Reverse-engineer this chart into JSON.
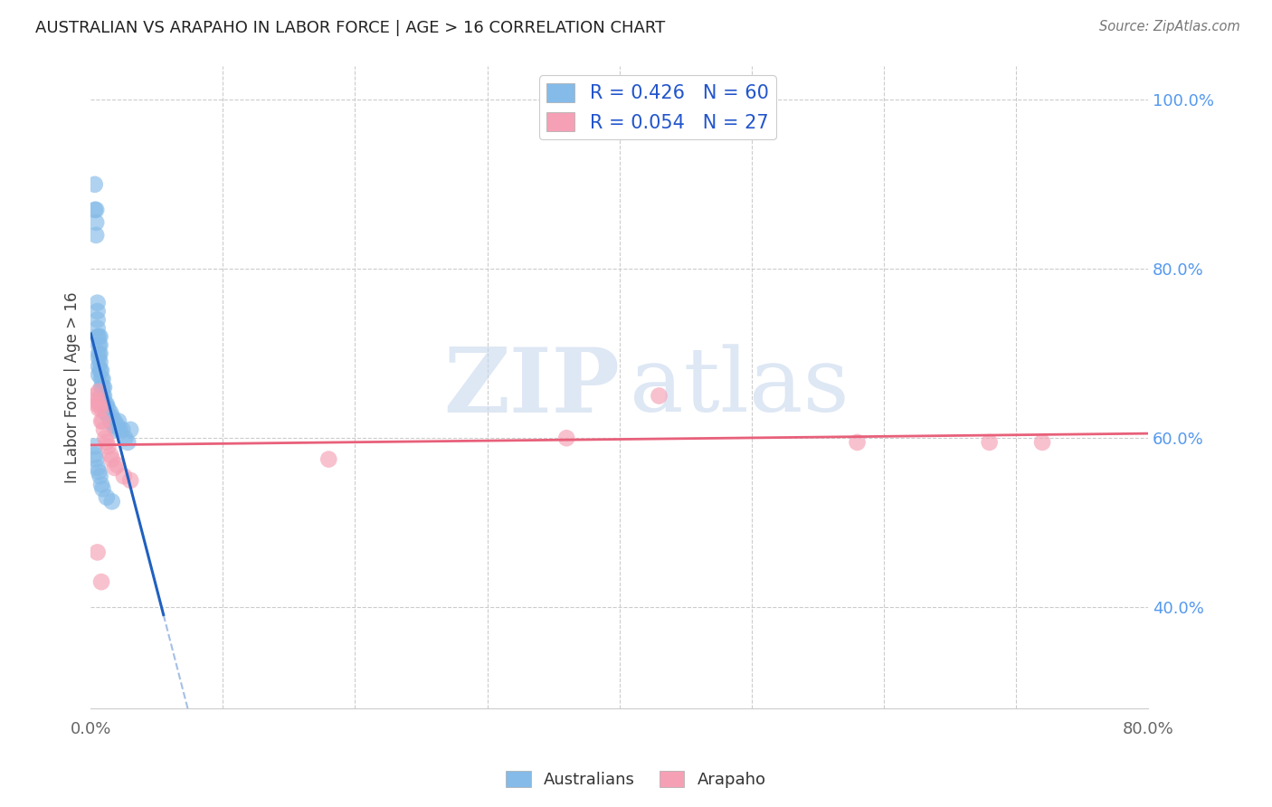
{
  "title": "AUSTRALIAN VS ARAPAHO IN LABOR FORCE | AGE > 16 CORRELATION CHART",
  "source": "Source: ZipAtlas.com",
  "ylabel": "In Labor Force | Age > 16",
  "xlim": [
    0.0,
    0.8
  ],
  "ylim": [
    0.28,
    1.04
  ],
  "xticks": [
    0.0,
    0.1,
    0.2,
    0.3,
    0.4,
    0.5,
    0.6,
    0.7,
    0.8
  ],
  "xticklabels": [
    "0.0%",
    "",
    "",
    "",
    "",
    "",
    "",
    "",
    "80.0%"
  ],
  "yticks_right": [
    0.4,
    0.6,
    0.8,
    1.0
  ],
  "yticklabels_right": [
    "40.0%",
    "60.0%",
    "80.0%",
    "100.0%"
  ],
  "blue_R": 0.426,
  "blue_N": 60,
  "pink_R": 0.054,
  "pink_N": 27,
  "blue_color": "#85BBE8",
  "pink_color": "#F5A0B5",
  "blue_line_color": "#2060C0",
  "pink_line_color": "#E8607A",
  "legend_label_blue": "Australians",
  "legend_label_pink": "Arapaho",
  "grid_color": "#cccccc",
  "bg_color": "#ffffff",
  "blue_x": [
    0.003,
    0.003,
    0.004,
    0.004,
    0.004,
    0.005,
    0.005,
    0.005,
    0.005,
    0.005,
    0.006,
    0.006,
    0.006,
    0.006,
    0.006,
    0.006,
    0.007,
    0.007,
    0.007,
    0.007,
    0.007,
    0.008,
    0.008,
    0.008,
    0.008,
    0.009,
    0.009,
    0.009,
    0.01,
    0.01,
    0.01,
    0.011,
    0.011,
    0.012,
    0.012,
    0.013,
    0.014,
    0.015,
    0.015,
    0.016,
    0.017,
    0.018,
    0.019,
    0.02,
    0.021,
    0.022,
    0.024,
    0.026,
    0.028,
    0.03,
    0.003,
    0.003,
    0.004,
    0.005,
    0.006,
    0.007,
    0.008,
    0.009,
    0.012,
    0.016
  ],
  "blue_y": [
    0.9,
    0.87,
    0.87,
    0.855,
    0.84,
    0.76,
    0.75,
    0.74,
    0.73,
    0.72,
    0.72,
    0.71,
    0.7,
    0.695,
    0.685,
    0.675,
    0.72,
    0.71,
    0.7,
    0.69,
    0.68,
    0.68,
    0.67,
    0.66,
    0.65,
    0.67,
    0.66,
    0.65,
    0.66,
    0.65,
    0.64,
    0.64,
    0.63,
    0.64,
    0.63,
    0.635,
    0.625,
    0.63,
    0.62,
    0.625,
    0.615,
    0.62,
    0.61,
    0.615,
    0.62,
    0.61,
    0.61,
    0.6,
    0.595,
    0.61,
    0.59,
    0.58,
    0.575,
    0.565,
    0.56,
    0.555,
    0.545,
    0.54,
    0.53,
    0.525
  ],
  "pink_x": [
    0.003,
    0.004,
    0.005,
    0.006,
    0.006,
    0.007,
    0.008,
    0.008,
    0.009,
    0.01,
    0.011,
    0.012,
    0.013,
    0.015,
    0.016,
    0.018,
    0.02,
    0.025,
    0.03,
    0.18,
    0.36,
    0.43,
    0.58,
    0.68,
    0.72,
    0.005,
    0.008
  ],
  "pink_y": [
    0.65,
    0.645,
    0.64,
    0.655,
    0.635,
    0.64,
    0.635,
    0.62,
    0.62,
    0.61,
    0.6,
    0.595,
    0.59,
    0.58,
    0.575,
    0.565,
    0.568,
    0.555,
    0.55,
    0.575,
    0.6,
    0.65,
    0.595,
    0.595,
    0.595,
    0.465,
    0.43
  ]
}
